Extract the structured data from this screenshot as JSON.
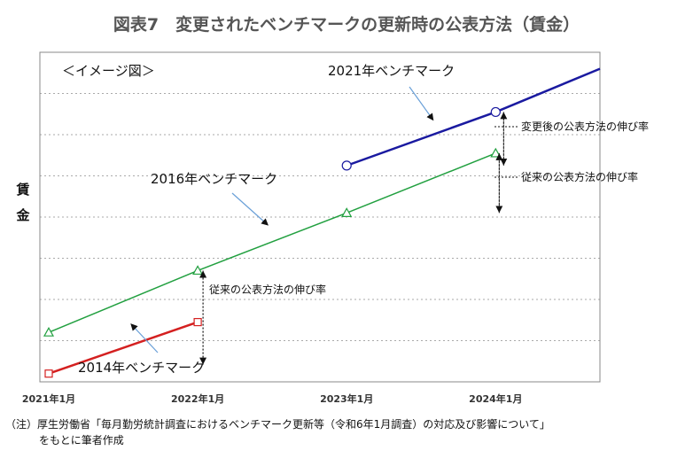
{
  "chart_data": {
    "type": "line",
    "title": "図表7　変更されたベンチマークの更新時の公表方法（賃金）",
    "image_note": "＜イメージ図＞",
    "ylabel": "賃金",
    "xlabel": "",
    "x_ticks": [
      "2021年1月",
      "2022年1月",
      "2023年1月",
      "2024年1月"
    ],
    "x_range": [
      2021.0,
      2024.7
    ],
    "y_range": [
      0,
      8
    ],
    "grid": "horizontal-dashed",
    "series": [
      {
        "name": "2014年ベンチマーク",
        "color": "#d42020",
        "marker": "square",
        "points": [
          {
            "x": 2021.0,
            "y": 0.2
          },
          {
            "x": 2022.0,
            "y": 1.45
          }
        ]
      },
      {
        "name": "2016年ベンチマーク",
        "color": "#22a040",
        "marker": "triangle",
        "points": [
          {
            "x": 2021.0,
            "y": 1.2
          },
          {
            "x": 2022.0,
            "y": 2.7
          },
          {
            "x": 2023.0,
            "y": 4.1
          },
          {
            "x": 2024.0,
            "y": 5.55
          }
        ]
      },
      {
        "name": "2021年ベンチマーク",
        "color": "#1a1aa0",
        "marker": "circle",
        "points": [
          {
            "x": 2023.0,
            "y": 5.25
          },
          {
            "x": 2024.0,
            "y": 6.55
          },
          {
            "x": 2024.7,
            "y": 7.6
          }
        ]
      }
    ],
    "annotations": {
      "change_after": "変更後の公表方法の伸び率",
      "conventional_2024": "従来の公表方法の伸び率",
      "conventional_2022": "従来の公表方法の伸び率"
    }
  },
  "footnote": {
    "line1": "（注）厚生労働省「毎月勤労統計調査におけるベンチマーク更新等（令和6年1月調査）の対応及び影響について」",
    "line2": "をもとに筆者作成"
  }
}
